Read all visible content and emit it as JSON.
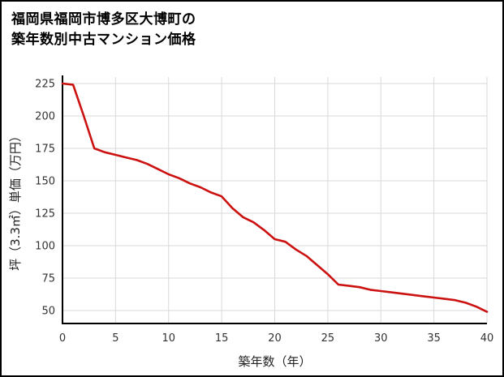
{
  "chart_data": {
    "type": "line",
    "title_lines": [
      "福岡県福岡市博多区大博町の",
      "築年数別中古マンション価格"
    ],
    "xlabel": "築年数（年）",
    "ylabel": "坪（3.3㎡）単価（万円）",
    "x": [
      0,
      1,
      2,
      3,
      4,
      5,
      6,
      7,
      8,
      9,
      10,
      11,
      12,
      13,
      14,
      15,
      16,
      17,
      18,
      19,
      20,
      21,
      22,
      23,
      24,
      25,
      26,
      27,
      28,
      29,
      30,
      31,
      32,
      33,
      34,
      35,
      36,
      37,
      38,
      39,
      40
    ],
    "values": [
      225,
      224,
      200,
      175,
      172,
      170,
      168,
      166,
      163,
      159,
      155,
      152,
      148,
      145,
      141,
      138,
      129,
      122,
      118,
      112,
      105,
      103,
      97,
      92,
      85,
      78,
      70,
      69,
      68,
      66,
      65,
      64,
      63,
      62,
      61,
      60,
      59,
      58,
      56,
      53,
      49
    ],
    "xlim": [
      0,
      40
    ],
    "ylim": [
      40,
      230
    ],
    "x_ticks": [
      0,
      5,
      10,
      15,
      20,
      25,
      30,
      35,
      40
    ],
    "y_ticks": [
      50,
      75,
      100,
      125,
      150,
      175,
      200,
      225
    ],
    "grid": true,
    "legend": false,
    "line_color": "#cc1111",
    "grid_color": "#d9d9d9",
    "axis_color": "#000000",
    "tick_label_color": "#333333",
    "axis_title_color": "#222222"
  }
}
